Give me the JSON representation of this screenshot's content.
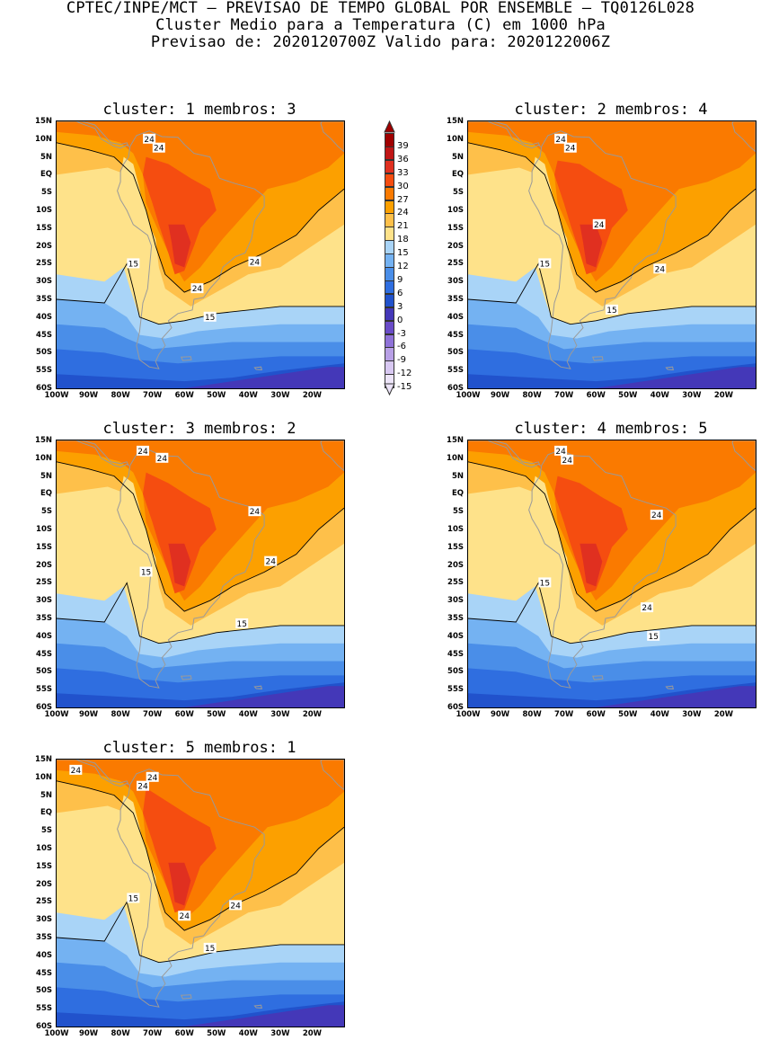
{
  "header": {
    "line1": "CPTEC/INPE/MCT – PREVISAO DE TEMPO GLOBAL POR ENSEMBLE – TQ0126L028",
    "line2": "Cluster Medio para a Temperatura (C) em 1000 hPa",
    "line3": "Previsao de: 2020120700Z   Valido para: 2020122006Z"
  },
  "axes": {
    "y_ticks": [
      "15N",
      "10N",
      "5N",
      "EQ",
      "5S",
      "10S",
      "15S",
      "20S",
      "25S",
      "30S",
      "35S",
      "40S",
      "45S",
      "50S",
      "55S",
      "60S"
    ],
    "x_ticks": [
      "100W",
      "90W",
      "80W",
      "70W",
      "60W",
      "50W",
      "40W",
      "30W",
      "20W"
    ],
    "lon_range": [
      -100,
      -10
    ],
    "lat_range": [
      -60,
      15
    ]
  },
  "legend": {
    "levels": [
      "39",
      "36",
      "33",
      "30",
      "27",
      "24",
      "21",
      "18",
      "15",
      "12",
      "9",
      "6",
      "3",
      "0",
      "-3",
      "-6",
      "-9",
      "-12",
      "-15"
    ],
    "colors": [
      "#a00000",
      "#c01616",
      "#e03020",
      "#f54d10",
      "#fa7a00",
      "#fca000",
      "#fec04a",
      "#fee28a",
      "#a9d4f7",
      "#74b2f2",
      "#4a8ee8",
      "#2f6ee0",
      "#2152cc",
      "#4438b8",
      "#6a4cc8",
      "#8f72d8",
      "#b8a0e6",
      "#d8c8f2",
      "#ece4f8"
    ]
  },
  "panels": [
    {
      "title": "cluster: 1   membros: 3",
      "labels": [
        "24",
        "24",
        "15",
        "24",
        "24",
        "15"
      ]
    },
    {
      "title": "cluster: 2   membros: 4",
      "labels": [
        "24",
        "24",
        "15",
        "24",
        "24",
        "15"
      ]
    },
    {
      "title": "cluster: 3   membros: 2",
      "labels": [
        "24",
        "24",
        "15",
        "24",
        "24",
        "15"
      ]
    },
    {
      "title": "cluster: 4   membros: 5",
      "labels": [
        "24",
        "24",
        "15",
        "24",
        "24",
        "15"
      ]
    },
    {
      "title": "cluster: 5   membros: 1",
      "labels": [
        "24",
        "24",
        "24",
        "15",
        "24",
        "24",
        "15"
      ]
    }
  ]
}
